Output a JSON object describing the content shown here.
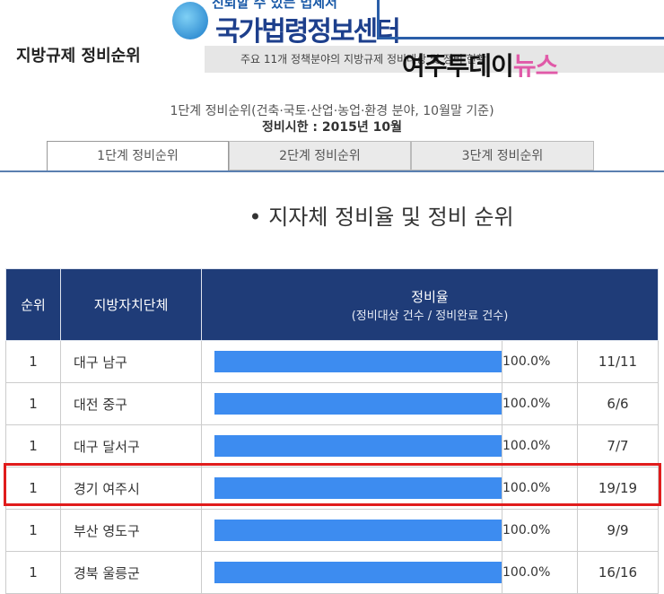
{
  "header": {
    "logo_tagline": "신뢰할 수 있는 법제서",
    "logo": "국가법령정보센터",
    "title": "지방규제 정비순위",
    "banner": "주요 11개 정책분야의 지방규제 정비대상 및 정비 현황",
    "watermark": [
      "여주투데이",
      "뉴스"
    ]
  },
  "notice": {
    "line1": "1단계 정비순위(건축·국토·산업·농업·환경 분야, 10월말 기준)",
    "line2": "정비시한 : 2015년 10월"
  },
  "tabs": [
    "1단계 정비순위",
    "2단계 정비순위",
    "3단계 정비순위"
  ],
  "section_title": "• 지자체 정비율 및 정비 순위",
  "table": {
    "columns": [
      "순위",
      "지방자치단체",
      "정비율",
      "(정비대상 건수 / 정비완료 건수)"
    ],
    "rows": [
      {
        "rank": "1",
        "region": "대구 남구",
        "rate": {
          "value": 100,
          "label": "100.0%"
        },
        "count": "11/11"
      },
      {
        "rank": "1",
        "region": "대전 중구",
        "rate": {
          "value": 100,
          "label": "100.0%"
        },
        "count": "6/6"
      },
      {
        "rank": "1",
        "region": "대구 달서구",
        "rate": {
          "value": 100,
          "label": "100.0%"
        },
        "count": "7/7"
      },
      {
        "rank": "1",
        "region": "경기 여주시",
        "rate": {
          "value": 100,
          "label": "100.0%"
        },
        "count": "19/19"
      },
      {
        "rank": "1",
        "region": "부산 영도구",
        "rate": {
          "value": 100,
          "label": "100.0%"
        },
        "count": "9/9"
      },
      {
        "rank": "1",
        "region": "경북 울릉군",
        "rate": {
          "value": 100,
          "label": "100.0%"
        },
        "count": "16/16"
      }
    ]
  }
}
